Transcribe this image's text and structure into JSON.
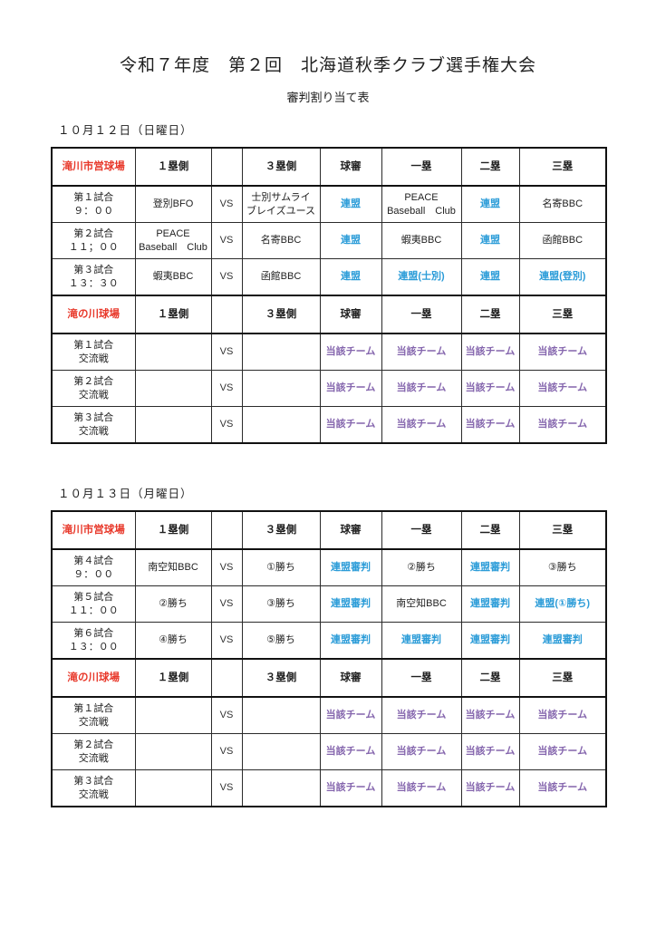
{
  "page": {
    "title": "令和７年度　第２回　北海道秋季クラブ選手権大会",
    "subtitle": "審判割り当て表"
  },
  "colors": {
    "red": "#e8382a",
    "blue": "#2b9cd8",
    "purple": "#8465ad",
    "ink": "#1f1f1f",
    "border": "#2b2b2b"
  },
  "columns": [
    "１塁側",
    "",
    "３塁側",
    "球審",
    "一塁",
    "二塁",
    "三塁"
  ],
  "days": [
    {
      "date": "１０月１２日（日曜日）",
      "blocks": [
        {
          "venue": "滝川市営球場",
          "rows": [
            {
              "game": "第１試合\n９：００",
              "home": "登別BFO",
              "vs": "VS",
              "away": "士別サムライ\nブレイズユース",
              "umpires": [
                {
                  "text": "連盟",
                  "color": "blue"
                },
                {
                  "text": "PEACE\nBaseball　Club",
                  "color": "black"
                },
                {
                  "text": "連盟",
                  "color": "blue"
                },
                {
                  "text": "名寄BBC",
                  "color": "black"
                }
              ]
            },
            {
              "game": "第２試合\n１１；００",
              "home": "PEACE\nBaseball　Club",
              "vs": "VS",
              "away": "名寄BBC",
              "umpires": [
                {
                  "text": "連盟",
                  "color": "blue"
                },
                {
                  "text": "蝦夷BBC",
                  "color": "black"
                },
                {
                  "text": "連盟",
                  "color": "blue"
                },
                {
                  "text": "函館BBC",
                  "color": "black"
                }
              ]
            },
            {
              "game": "第３試合\n１３：３０",
              "home": "蝦夷BBC",
              "vs": "VS",
              "away": "函館BBC",
              "umpires": [
                {
                  "text": "連盟",
                  "color": "blue"
                },
                {
                  "text": "連盟(士別)",
                  "color": "blue"
                },
                {
                  "text": "連盟",
                  "color": "blue"
                },
                {
                  "text": "連盟(登別)",
                  "color": "blue"
                }
              ]
            }
          ]
        },
        {
          "venue": "滝の川球場",
          "rows": [
            {
              "game": "第１試合\n交流戦",
              "home": "",
              "vs": "VS",
              "away": "",
              "umpires": [
                {
                  "text": "当該チーム",
                  "color": "purple"
                },
                {
                  "text": "当該チーム",
                  "color": "purple"
                },
                {
                  "text": "当該チーム",
                  "color": "purple"
                },
                {
                  "text": "当該チーム",
                  "color": "purple"
                }
              ]
            },
            {
              "game": "第２試合\n交流戦",
              "home": "",
              "vs": "VS",
              "away": "",
              "umpires": [
                {
                  "text": "当該チーム",
                  "color": "purple"
                },
                {
                  "text": "当該チーム",
                  "color": "purple"
                },
                {
                  "text": "当該チーム",
                  "color": "purple"
                },
                {
                  "text": "当該チーム",
                  "color": "purple"
                }
              ]
            },
            {
              "game": "第３試合\n交流戦",
              "home": "",
              "vs": "VS",
              "away": "",
              "umpires": [
                {
                  "text": "当該チーム",
                  "color": "purple"
                },
                {
                  "text": "当該チーム",
                  "color": "purple"
                },
                {
                  "text": "当該チーム",
                  "color": "purple"
                },
                {
                  "text": "当該チーム",
                  "color": "purple"
                }
              ]
            }
          ]
        }
      ]
    },
    {
      "date": "１０月１３日（月曜日）",
      "blocks": [
        {
          "venue": "滝川市営球場",
          "rows": [
            {
              "game": "第４試合\n９：００",
              "home": "南空知BBC",
              "vs": "VS",
              "away": "①勝ち",
              "umpires": [
                {
                  "text": "連盟審判",
                  "color": "blue"
                },
                {
                  "text": "②勝ち",
                  "color": "black"
                },
                {
                  "text": "連盟審判",
                  "color": "blue"
                },
                {
                  "text": "③勝ち",
                  "color": "black"
                }
              ]
            },
            {
              "game": "第５試合\n１１：００",
              "home": "②勝ち",
              "vs": "VS",
              "away": "③勝ち",
              "umpires": [
                {
                  "text": "連盟審判",
                  "color": "blue"
                },
                {
                  "text": "南空知BBC",
                  "color": "black"
                },
                {
                  "text": "連盟審判",
                  "color": "blue"
                },
                {
                  "text": "連盟(①勝ち)",
                  "color": "blue"
                }
              ]
            },
            {
              "game": "第６試合\n１３：００",
              "home": "④勝ち",
              "vs": "VS",
              "away": "⑤勝ち",
              "umpires": [
                {
                  "text": "連盟審判",
                  "color": "blue"
                },
                {
                  "text": "連盟審判",
                  "color": "blue"
                },
                {
                  "text": "連盟審判",
                  "color": "blue"
                },
                {
                  "text": "連盟審判",
                  "color": "blue"
                }
              ]
            }
          ]
        },
        {
          "venue": "滝の川球場",
          "rows": [
            {
              "game": "第１試合\n交流戦",
              "home": "",
              "vs": "VS",
              "away": "",
              "umpires": [
                {
                  "text": "当該チーム",
                  "color": "purple"
                },
                {
                  "text": "当該チーム",
                  "color": "purple"
                },
                {
                  "text": "当該チーム",
                  "color": "purple"
                },
                {
                  "text": "当該チーム",
                  "color": "purple"
                }
              ]
            },
            {
              "game": "第２試合\n交流戦",
              "home": "",
              "vs": "VS",
              "away": "",
              "umpires": [
                {
                  "text": "当該チーム",
                  "color": "purple"
                },
                {
                  "text": "当該チーム",
                  "color": "purple"
                },
                {
                  "text": "当該チーム",
                  "color": "purple"
                },
                {
                  "text": "当該チーム",
                  "color": "purple"
                }
              ]
            },
            {
              "game": "第３試合\n交流戦",
              "home": "",
              "vs": "VS",
              "away": "",
              "umpires": [
                {
                  "text": "当該チーム",
                  "color": "purple"
                },
                {
                  "text": "当該チーム",
                  "color": "purple"
                },
                {
                  "text": "当該チーム",
                  "color": "purple"
                },
                {
                  "text": "当該チーム",
                  "color": "purple"
                }
              ]
            }
          ]
        }
      ]
    }
  ]
}
